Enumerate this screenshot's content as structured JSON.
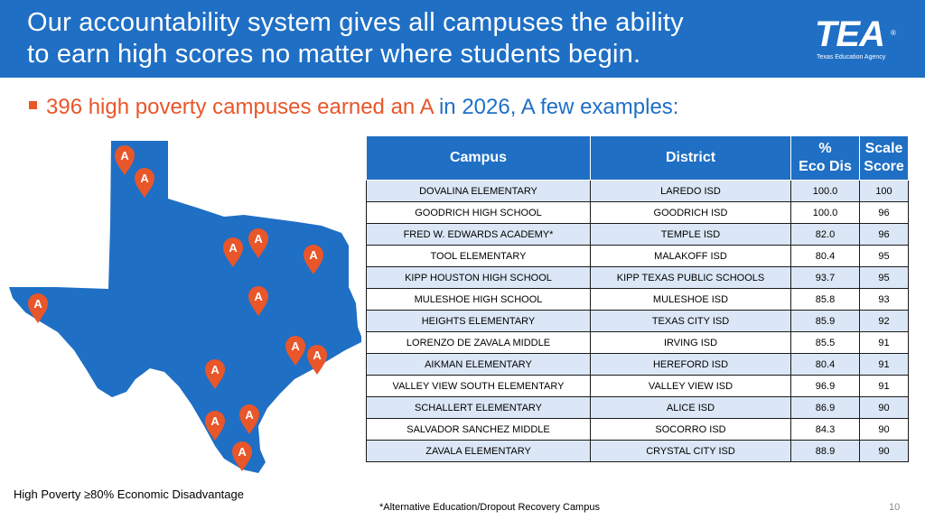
{
  "header": {
    "title_line1": "Our accountability system gives all campuses the ability",
    "title_line2": "to earn high scores no matter where students begin.",
    "logo_text": "TEA",
    "logo_subtitle": "Texas Education Agency",
    "logo_reg": "®"
  },
  "bullet": {
    "highlight": "396 high poverty campuses earned an A",
    "rest": " in 2026, A few examples:"
  },
  "map": {
    "marker_label": "A",
    "fill_color": "#1f6fc5",
    "marker_color": "#e8562a",
    "caption": "High Poverty ≥80% Economic Disadvantage"
  },
  "table": {
    "headers": {
      "campus": "Campus",
      "district": "District",
      "eco_line1": "%",
      "eco_line2": "Eco Dis",
      "score_line1": "Scale",
      "score_line2": "Score"
    },
    "rows": [
      {
        "campus": "DOVALINA ELEMENTARY",
        "district": "LAREDO ISD",
        "eco": "100.0",
        "score": "100"
      },
      {
        "campus": "GOODRICH HIGH SCHOOL",
        "district": "GOODRICH ISD",
        "eco": "100.0",
        "score": "96"
      },
      {
        "campus": "FRED W. EDWARDS ACADEMY*",
        "district": "TEMPLE ISD",
        "eco": "82.0",
        "score": "96"
      },
      {
        "campus": "TOOL ELEMENTARY",
        "district": "MALAKOFF ISD",
        "eco": "80.4",
        "score": "95"
      },
      {
        "campus": "KIPP HOUSTON HIGH SCHOOL",
        "district": "KIPP TEXAS PUBLIC SCHOOLS",
        "eco": "93.7",
        "score": "95"
      },
      {
        "campus": "MULESHOE HIGH SCHOOL",
        "district": "MULESHOE ISD",
        "eco": "85.8",
        "score": "93"
      },
      {
        "campus": "HEIGHTS ELEMENTARY",
        "district": "TEXAS CITY ISD",
        "eco": "85.9",
        "score": "92"
      },
      {
        "campus": "LORENZO DE ZAVALA MIDDLE",
        "district": "IRVING ISD",
        "eco": "85.5",
        "score": "91"
      },
      {
        "campus": "AIKMAN ELEMENTARY",
        "district": "HEREFORD ISD",
        "eco": "80.4",
        "score": "91"
      },
      {
        "campus": "VALLEY VIEW SOUTH ELEMENTARY",
        "district": "VALLEY VIEW ISD",
        "eco": "96.9",
        "score": "91"
      },
      {
        "campus": "SCHALLERT ELEMENTARY",
        "district": "ALICE ISD",
        "eco": "86.9",
        "score": "90"
      },
      {
        "campus": "SALVADOR SANCHEZ MIDDLE",
        "district": "SOCORRO ISD",
        "eco": "84.3",
        "score": "90"
      },
      {
        "campus": "ZAVALA ELEMENTARY",
        "district": "CRYSTAL CITY ISD",
        "eco": "88.9",
        "score": "90"
      }
    ]
  },
  "footnote": "*Alternative Education/Dropout Recovery Campus",
  "page_number": "10"
}
